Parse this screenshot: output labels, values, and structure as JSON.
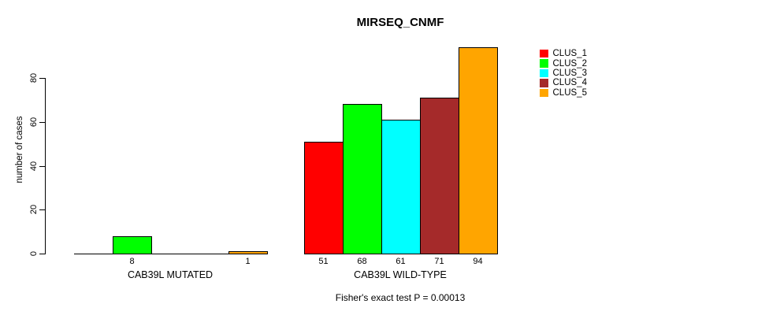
{
  "title": "MIRSEQ_CNMF",
  "caption": "Fisher's exact test P = 0.00013",
  "chart_data": {
    "type": "bar",
    "title": "MIRSEQ_CNMF",
    "xlabel": "",
    "ylabel": "number of cases",
    "ylim": [
      0,
      94
    ],
    "yticks": [
      0,
      20,
      40,
      60,
      80
    ],
    "grid": false,
    "legend_position": "right",
    "bar_value_labels_shown_for_nonzero_only": true,
    "categories": [
      "CAB39L MUTATED",
      "CAB39L WILD-TYPE"
    ],
    "series": [
      {
        "name": "CLUS_1",
        "color": "#FF0000",
        "values": [
          0,
          51
        ]
      },
      {
        "name": "CLUS_2",
        "color": "#00FF00",
        "values": [
          8,
          68
        ]
      },
      {
        "name": "CLUS_3",
        "color": "#00FFFF",
        "values": [
          0,
          61
        ]
      },
      {
        "name": "CLUS_4",
        "color": "#A52A2A",
        "values": [
          0,
          71
        ]
      },
      {
        "name": "CLUS_5",
        "color": "#FFA500",
        "values": [
          1,
          94
        ]
      }
    ]
  }
}
